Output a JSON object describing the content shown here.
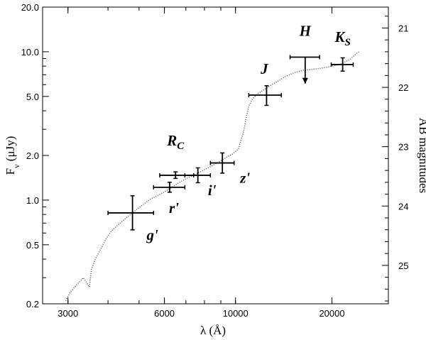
{
  "chart_data": {
    "type": "scatter",
    "x_scale": "log",
    "y_scale": "log",
    "xlim": [
      2500,
      30000
    ],
    "ylim": [
      0.2,
      20.0
    ],
    "xlabel": "λ (Å)",
    "ylabel": "F_ν (μJy)",
    "ylabel_right": "AB magnitudes",
    "x_ticks": [
      {
        "value": 3000,
        "label": "3000"
      },
      {
        "value": 6000,
        "label": "6000"
      },
      {
        "value": 10000,
        "label": "10000"
      },
      {
        "value": 20000,
        "label": "20000"
      }
    ],
    "y_ticks": [
      {
        "value": 0.2,
        "label": "0.2"
      },
      {
        "value": 0.5,
        "label": "0.5"
      },
      {
        "value": 1.0,
        "label": "1.0"
      },
      {
        "value": 2.0,
        "label": "2.0"
      },
      {
        "value": 5.0,
        "label": "5.0"
      },
      {
        "value": 10.0,
        "label": "10.0"
      },
      {
        "value": 20.0,
        "label": "20.0"
      }
    ],
    "y_right_ticks": [
      {
        "mag": 21,
        "label": "21"
      },
      {
        "mag": 22,
        "label": "22"
      },
      {
        "mag": 23,
        "label": "23"
      },
      {
        "mag": 24,
        "label": "24"
      },
      {
        "mag": 25,
        "label": "25"
      }
    ],
    "photometry": [
      {
        "band": "g'",
        "label": "g'",
        "wavelength": 4770,
        "wl_low": 4000,
        "wl_high": 5550,
        "flux": 0.82,
        "flux_low": 0.63,
        "flux_high": 1.07,
        "upper_limit": false
      },
      {
        "band": "r'",
        "label": "r'",
        "wavelength": 6230,
        "wl_low": 5550,
        "wl_high": 6950,
        "flux": 1.22,
        "flux_low": 1.13,
        "flux_high": 1.32,
        "upper_limit": false
      },
      {
        "band": "Rc",
        "label": "R",
        "label_sub": "C",
        "wavelength": 6500,
        "wl_low": 5800,
        "wl_high": 7400,
        "flux": 1.47,
        "flux_low": 1.4,
        "flux_high": 1.55,
        "upper_limit": false
      },
      {
        "band": "i'",
        "label": "i'",
        "wavelength": 7630,
        "wl_low": 6950,
        "wl_high": 8350,
        "flux": 1.47,
        "flux_low": 1.31,
        "flux_high": 1.65,
        "upper_limit": false
      },
      {
        "band": "z'",
        "label": "z'",
        "wavelength": 9100,
        "wl_low": 8350,
        "wl_high": 9900,
        "flux": 1.78,
        "flux_low": 1.52,
        "flux_high": 2.08,
        "upper_limit": false
      },
      {
        "band": "J",
        "label": "J",
        "wavelength": 12500,
        "wl_low": 11000,
        "wl_high": 13900,
        "flux": 5.1,
        "flux_low": 4.35,
        "flux_high": 5.9,
        "upper_limit": false
      },
      {
        "band": "H",
        "label": "H",
        "wavelength": 16500,
        "wl_low": 14800,
        "wl_high": 18300,
        "flux": 9.2,
        "flux_low": 6.1,
        "flux_high": 9.2,
        "upper_limit": true
      },
      {
        "band": "Ks",
        "label": "K",
        "label_sub": "S",
        "wavelength": 21600,
        "wl_low": 19900,
        "wl_high": 23300,
        "flux": 8.2,
        "flux_low": 7.4,
        "flux_high": 9.1,
        "upper_limit": false
      }
    ],
    "model_spectrum": {
      "style": "dotted",
      "points": [
        [
          2950,
          0.21
        ],
        [
          3050,
          0.24
        ],
        [
          3200,
          0.27
        ],
        [
          3350,
          0.3
        ],
        [
          3500,
          0.26
        ],
        [
          3550,
          0.34
        ],
        [
          3650,
          0.4
        ],
        [
          3800,
          0.47
        ],
        [
          3950,
          0.55
        ],
        [
          4100,
          0.62
        ],
        [
          4300,
          0.68
        ],
        [
          4500,
          0.74
        ],
        [
          4700,
          0.8
        ],
        [
          4900,
          0.86
        ],
        [
          5100,
          0.92
        ],
        [
          5300,
          0.98
        ],
        [
          5500,
          1.03
        ],
        [
          5800,
          1.09
        ],
        [
          6100,
          1.16
        ],
        [
          6400,
          1.24
        ],
        [
          6700,
          1.32
        ],
        [
          7000,
          1.39
        ],
        [
          7400,
          1.47
        ],
        [
          7800,
          1.56
        ],
        [
          8200,
          1.65
        ],
        [
          8600,
          1.74
        ],
        [
          9000,
          1.84
        ],
        [
          9400,
          1.95
        ],
        [
          9800,
          2.05
        ],
        [
          10200,
          2.2
        ],
        [
          10600,
          2.9
        ],
        [
          10800,
          3.6
        ],
        [
          11000,
          4.3
        ],
        [
          11300,
          4.8
        ],
        [
          11700,
          5.2
        ],
        [
          12200,
          5.5
        ],
        [
          12800,
          5.9
        ],
        [
          13500,
          6.3
        ],
        [
          14300,
          6.8
        ],
        [
          15200,
          7.2
        ],
        [
          16200,
          7.5
        ],
        [
          17200,
          7.6
        ],
        [
          18300,
          7.7
        ],
        [
          19500,
          7.9
        ],
        [
          20600,
          8.1
        ],
        [
          21700,
          8.4
        ],
        [
          22800,
          8.9
        ],
        [
          23700,
          9.6
        ],
        [
          24300,
          10.0
        ]
      ]
    },
    "grid": false
  }
}
